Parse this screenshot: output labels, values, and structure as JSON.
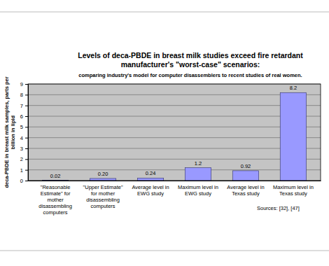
{
  "chart_data": {
    "type": "bar",
    "title": "Levels of deca-PBDE in breast milk studies exceed fire retardant manufacturer's \"worst-case\" scenarios:",
    "subtitle": "comparing industry's model for computer disassemblers to recent studies of real women.",
    "y_label": "deca-PBDE in breast milk samples, parts per billion in lipid",
    "categories": [
      "\"Reasonable Estimate\" for mother disassembling computers",
      "\"Upper Estimate\" for mother disassembling computers",
      "Average level in EWG study",
      "Maximum level in EWG study",
      "Average level in Texas study",
      "Maximum level in Texas study"
    ],
    "values": [
      0.02,
      0.2,
      0.24,
      1.2,
      0.92,
      8.2
    ],
    "value_labels": [
      "0.02",
      "0.20",
      "0.24",
      "1.2",
      "0.92",
      "8.2"
    ],
    "color": "#9999ff",
    "ylim": [
      0,
      9
    ],
    "yticks": [
      0,
      1,
      2,
      3,
      4,
      5,
      6,
      7,
      8,
      9
    ],
    "grid": true,
    "data_labels": true,
    "annotations": [
      "Sources: [32], [47]"
    ]
  }
}
